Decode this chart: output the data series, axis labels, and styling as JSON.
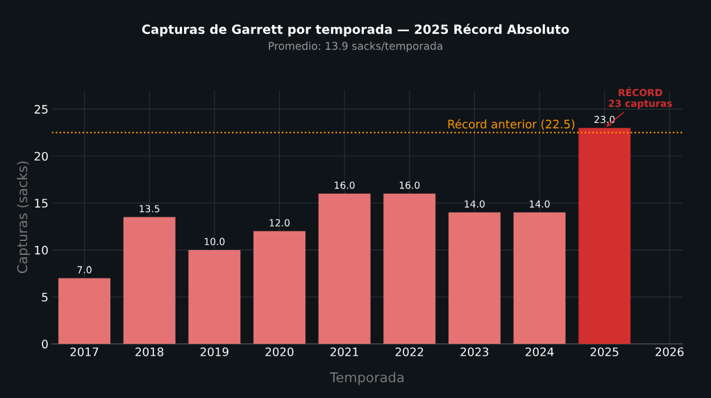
{
  "chart_data": {
    "type": "bar",
    "title": "Capturas de Garrett por temporada — 2025 Récord Absoluto",
    "subtitle": "Promedio: 13.9 sacks/temporada",
    "xlabel": "Temporada",
    "ylabel": "Capturas (sacks)",
    "x": [
      2017,
      2018,
      2019,
      2020,
      2021,
      2022,
      2023,
      2024,
      2025
    ],
    "values": [
      7.0,
      13.5,
      10.0,
      12.0,
      16.0,
      16.0,
      14.0,
      14.0,
      23.0
    ],
    "colors": [
      "#e57373",
      "#e57373",
      "#e57373",
      "#e57373",
      "#e57373",
      "#e57373",
      "#e57373",
      "#e57373",
      "#d32f2f"
    ],
    "value_labels": [
      "7.0",
      "13.5",
      "10.0",
      "12.0",
      "16.0",
      "16.0",
      "14.0",
      "14.0",
      "23.0"
    ],
    "xlim": [
      2016.5,
      2026.2
    ],
    "xticks": [
      2017,
      2018,
      2019,
      2020,
      2021,
      2022,
      2023,
      2024,
      2025,
      2026
    ],
    "ylim": [
      0,
      27
    ],
    "yticks": [
      0,
      5,
      10,
      15,
      20,
      25
    ],
    "ref_lines": [
      {
        "axis": "y",
        "value": 22.5,
        "label": "Récord anterior (22.5)",
        "color": "#ff9800",
        "line_style": "dotted"
      }
    ],
    "annotations": [
      {
        "text": "RÉCORD\n23 capturas",
        "x": 2025,
        "y": 23
      }
    ],
    "grid": true,
    "legend": false
  }
}
